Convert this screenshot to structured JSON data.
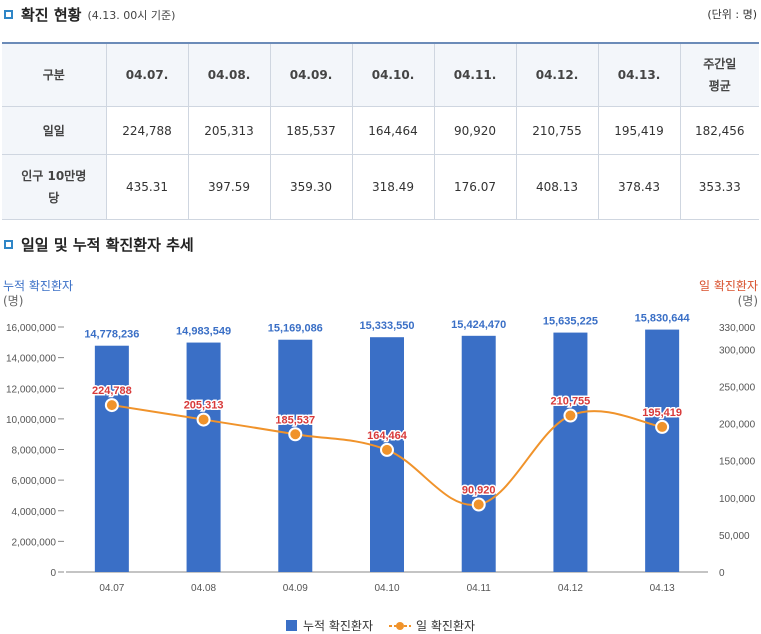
{
  "section1": {
    "title": "확진 현황",
    "subtitle": "(4.13. 00시 기준)",
    "unit": "(단위 : 명)"
  },
  "table": {
    "headers": [
      "구분",
      "04.07.",
      "04.08.",
      "04.09.",
      "04.10.",
      "04.11.",
      "04.12.",
      "04.13.",
      "주간일\n평균"
    ],
    "rows": [
      {
        "label": "일일",
        "values": [
          "224,788",
          "205,313",
          "185,537",
          "164,464",
          "90,920",
          "210,755",
          "195,419",
          "182,456"
        ]
      },
      {
        "label": "인구 10만명\n당",
        "values": [
          "435.31",
          "397.59",
          "359.30",
          "318.49",
          "176.07",
          "408.13",
          "378.43",
          "353.33"
        ]
      }
    ]
  },
  "section2": {
    "title": "일일 및 누적 확진환자 추세"
  },
  "colors": {
    "bar": "#3a6fc6",
    "line": "#f0932b",
    "bar_label": "#3a6fc6",
    "line_label": "#d83a3a",
    "left_axis_title": "#3a6fc6",
    "right_axis_title": "#d8502c"
  },
  "chart_data": {
    "type": "bar+line",
    "categories": [
      "04.07",
      "04.08",
      "04.09",
      "04.10",
      "04.11",
      "04.12",
      "04.13"
    ],
    "series": [
      {
        "name": "누적 확진환자",
        "type": "bar",
        "axis": "left",
        "values": [
          14778236,
          14983549,
          15169086,
          15333550,
          15424470,
          15635225,
          15830644
        ],
        "labels": [
          "14,778,236",
          "14,983,549",
          "15,169,086",
          "15,333,550",
          "15,424,470",
          "15,635,225",
          "15,830,644"
        ]
      },
      {
        "name": "일 확진환자",
        "type": "line",
        "axis": "right",
        "values": [
          224788,
          205313,
          185537,
          164464,
          90920,
          210755,
          195419
        ],
        "labels": [
          "224,788",
          "205,313",
          "185,537",
          "164,464",
          "90,920",
          "210,755",
          "195,419"
        ]
      }
    ],
    "left_axis": {
      "title": "누적 확진환자",
      "unit": "(명)",
      "ylim": [
        0,
        16000000
      ],
      "ticks": [
        0,
        2000000,
        4000000,
        6000000,
        8000000,
        10000000,
        12000000,
        14000000,
        16000000
      ],
      "tick_labels": [
        "0",
        "2,000,000",
        "4,000,000",
        "6,000,000",
        "8,000,000",
        "10,000,000",
        "12,000,000",
        "14,000,000",
        "16,000,000"
      ]
    },
    "right_axis": {
      "title": "일 확진환자",
      "unit": "(명)",
      "ylim": [
        0,
        330000
      ],
      "ticks": [
        0,
        50000,
        100000,
        150000,
        200000,
        250000,
        300000,
        330000
      ],
      "tick_labels": [
        "0",
        "50,000",
        "100,000",
        "150,000",
        "200,000",
        "250,000",
        "300,000",
        "330,000"
      ]
    },
    "grid": false,
    "legend": "bottom"
  },
  "legend": {
    "items": [
      "누적 확진환자",
      "일 확진환자"
    ]
  }
}
